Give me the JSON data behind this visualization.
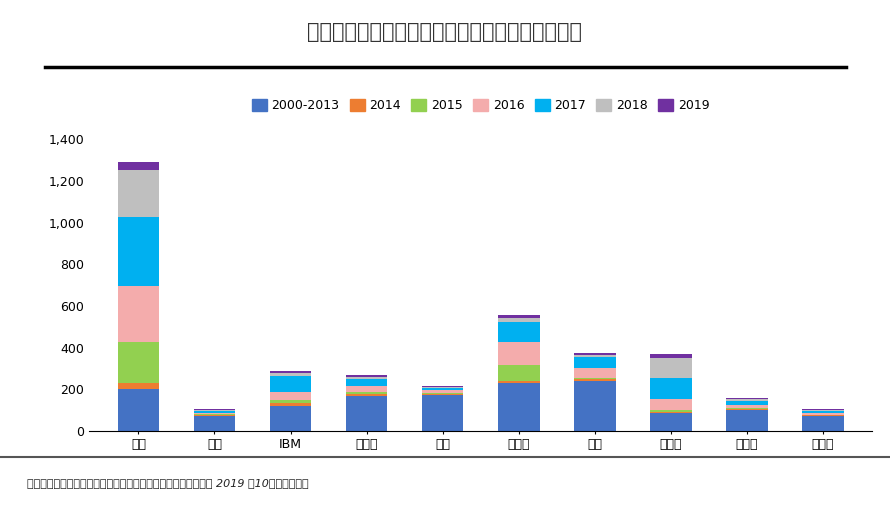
{
  "title": "图表：全球人工智能芯片前十申请人历年申请情况",
  "categories": [
    "三星",
    "日立",
    "IBM",
    "西门子",
    "东芝",
    "欧司朗",
    "高通",
    "英特尔",
    "飞利浦",
    "富士通"
  ],
  "series_names": [
    "2000-2013",
    "2014",
    "2015",
    "2016",
    "2017",
    "2018",
    "2019"
  ],
  "series": {
    "2000-2013": [
      200,
      70,
      120,
      165,
      170,
      230,
      240,
      85,
      100,
      70
    ],
    "2014": [
      30,
      5,
      12,
      10,
      5,
      10,
      8,
      5,
      5,
      4
    ],
    "2015": [
      195,
      5,
      15,
      10,
      5,
      75,
      8,
      12,
      5,
      4
    ],
    "2016": [
      270,
      8,
      38,
      30,
      15,
      110,
      45,
      50,
      15,
      8
    ],
    "2017": [
      330,
      8,
      78,
      35,
      10,
      100,
      55,
      100,
      20,
      8
    ],
    "2018": [
      230,
      5,
      15,
      10,
      5,
      15,
      10,
      100,
      10,
      5
    ],
    "2019": [
      35,
      4,
      10,
      8,
      5,
      15,
      10,
      15,
      5,
      4
    ]
  },
  "colors": {
    "2000-2013": "#4472C4",
    "2014": "#ED7D31",
    "2015": "#92D050",
    "2016": "#F4ACAC",
    "2017": "#00B0F0",
    "2018": "#BFBFBF",
    "2019": "#7030A0"
  },
  "ylim": [
    0,
    1400
  ],
  "yticks": [
    0,
    200,
    400,
    600,
    800,
    1000,
    1200,
    1400
  ],
  "footer": "资料来源：中国人工智能产业发展联盟，恒大研究院（时间截至 2019 年10月）泽平宏观",
  "background_color": "#FFFFFF",
  "footer_bg_color": "#D9D9D9",
  "title_color": "#333333",
  "title_fontsize": 15,
  "tick_fontsize": 9,
  "legend_fontsize": 9,
  "bar_width": 0.55,
  "fig_width": 8.9,
  "fig_height": 5.16,
  "fig_dpi": 100
}
